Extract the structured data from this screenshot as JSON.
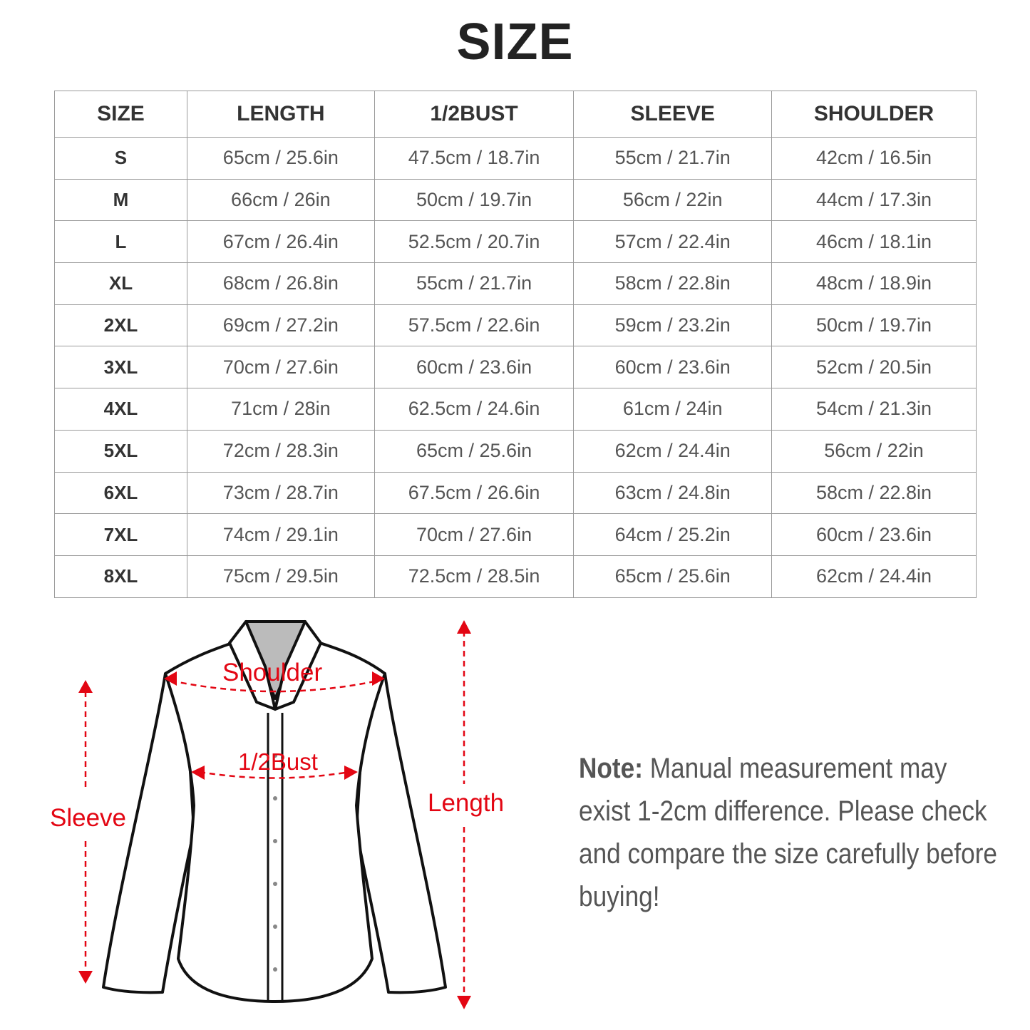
{
  "title": "SIZE",
  "table": {
    "headers": [
      "SIZE",
      "LENGTH",
      "1/2BUST",
      "SLEEVE",
      "SHOULDER"
    ],
    "rows": [
      [
        "S",
        "65cm / 25.6in",
        "47.5cm / 18.7in",
        "55cm / 21.7in",
        "42cm / 16.5in"
      ],
      [
        "M",
        "66cm / 26in",
        "50cm / 19.7in",
        "56cm / 22in",
        "44cm / 17.3in"
      ],
      [
        "L",
        "67cm / 26.4in",
        "52.5cm / 20.7in",
        "57cm / 22.4in",
        "46cm / 18.1in"
      ],
      [
        "XL",
        "68cm / 26.8in",
        "55cm / 21.7in",
        "58cm / 22.8in",
        "48cm / 18.9in"
      ],
      [
        "2XL",
        "69cm / 27.2in",
        "57.5cm / 22.6in",
        "59cm / 23.2in",
        "50cm / 19.7in"
      ],
      [
        "3XL",
        "70cm / 27.6in",
        "60cm / 23.6in",
        "60cm / 23.6in",
        "52cm / 20.5in"
      ],
      [
        "4XL",
        "71cm / 28in",
        "62.5cm / 24.6in",
        "61cm / 24in",
        "54cm / 21.3in"
      ],
      [
        "5XL",
        "72cm / 28.3in",
        "65cm / 25.6in",
        "62cm / 24.4in",
        "56cm / 22in"
      ],
      [
        "6XL",
        "73cm / 28.7in",
        "67.5cm / 26.6in",
        "63cm / 24.8in",
        "58cm / 22.8in"
      ],
      [
        "7XL",
        "74cm / 29.1in",
        "70cm / 27.6in",
        "64cm / 25.2in",
        "60cm / 23.6in"
      ],
      [
        "8XL",
        "75cm / 29.5in",
        "72.5cm / 28.5in",
        "65cm / 25.6in",
        "62cm / 24.4in"
      ]
    ]
  },
  "diagram": {
    "shoulder_label": "Shoulder",
    "bust_label": "1/2Bust",
    "sleeve_label": "Sleeve",
    "length_label": "Length",
    "accent_color": "#e30613"
  },
  "note": {
    "prefix": "Note:",
    "text": " Manual measurement may exist 1-2cm difference. Please check and compare the size carefully before buying!"
  }
}
